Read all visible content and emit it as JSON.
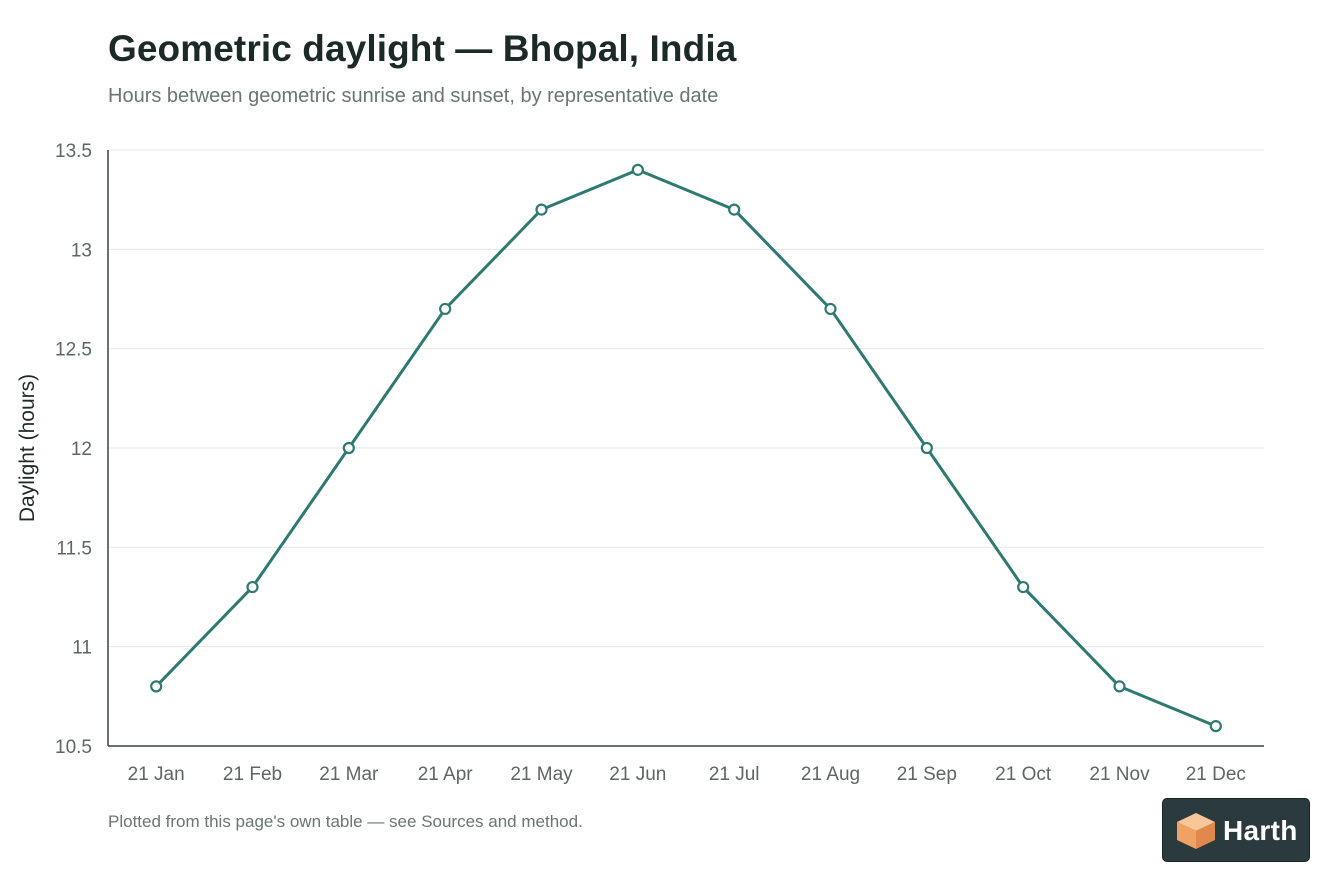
{
  "header": {
    "title": "Geometric daylight — Bhopal, India",
    "subtitle": "Hours between geometric sunrise and sunset, by representative date"
  },
  "footer": {
    "note": "Plotted from this page's own table — see Sources and method."
  },
  "logo": {
    "text": "Harth",
    "icon": "cube-icon"
  },
  "chart_data": {
    "type": "line",
    "title": "Geometric daylight — Bhopal, India",
    "subtitle": "Hours between geometric sunrise and sunset, by representative date",
    "xlabel": "",
    "ylabel": "Daylight (hours)",
    "categories": [
      "21 Jan",
      "21 Feb",
      "21 Mar",
      "21 Apr",
      "21 May",
      "21 Jun",
      "21 Jul",
      "21 Aug",
      "21 Sep",
      "21 Oct",
      "21 Nov",
      "21 Dec"
    ],
    "series": [
      {
        "values": [
          10.8,
          11.3,
          12.0,
          12.7,
          13.2,
          13.4,
          13.2,
          12.7,
          12.0,
          11.3,
          10.8,
          10.6
        ],
        "color": "#2e7a70"
      }
    ],
    "ylim": [
      10.5,
      13.5
    ],
    "yticks": [
      "10.5",
      "11",
      "11.5",
      "12",
      "12.5",
      "13",
      "13.5"
    ],
    "grid": true,
    "legend": "none",
    "markers": "hollow-circle"
  }
}
